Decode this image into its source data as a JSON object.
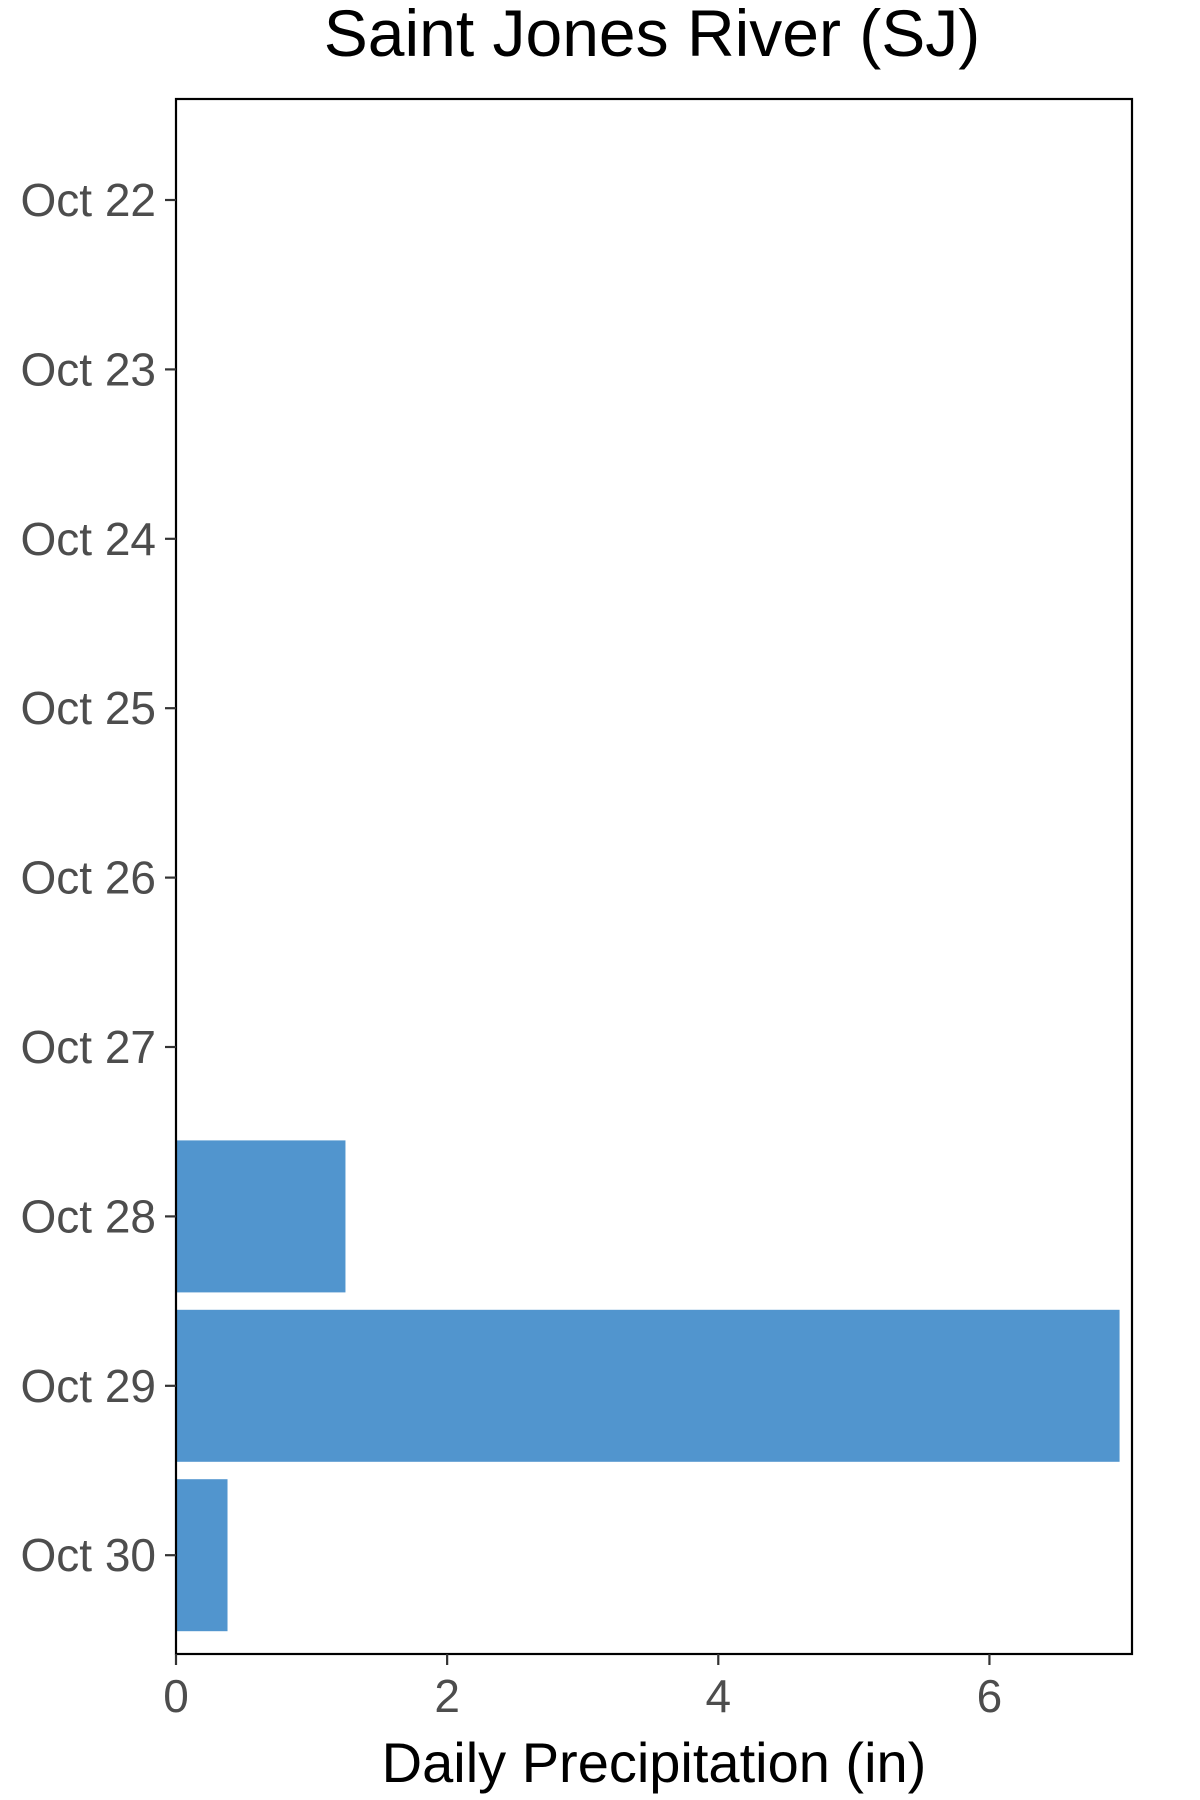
{
  "chart_data": {
    "type": "bar",
    "orientation": "horizontal",
    "title": "Saint Jones River (SJ)",
    "xlabel": "Daily Precipitation (in)",
    "ylabel": "",
    "categories": [
      "Oct 22",
      "Oct 23",
      "Oct 24",
      "Oct 25",
      "Oct 26",
      "Oct 27",
      "Oct 28",
      "Oct 29",
      "Oct 30"
    ],
    "values": [
      0,
      0,
      0,
      0,
      0,
      0,
      1.25,
      6.96,
      0.38
    ],
    "xlim": [
      0,
      7.0
    ],
    "xticks": [
      "0",
      "2",
      "4",
      "6"
    ],
    "bar_color": "#5195ce",
    "grid": false,
    "legend": "none"
  }
}
